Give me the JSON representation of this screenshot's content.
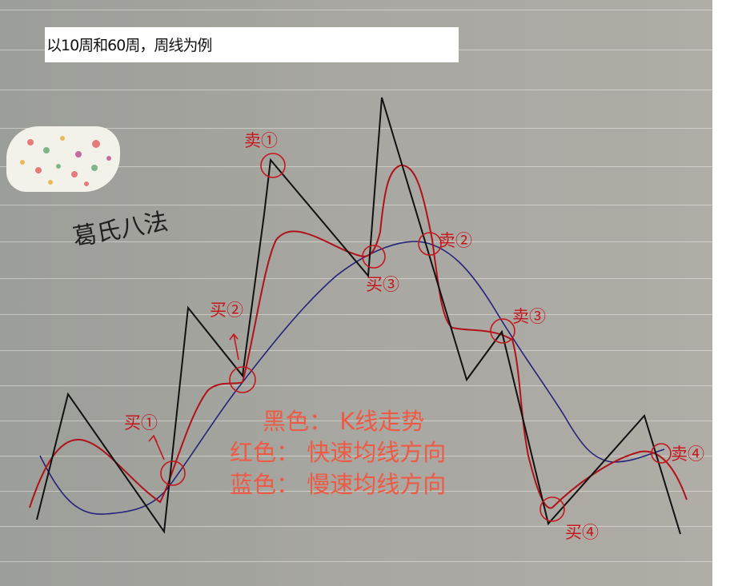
{
  "caption": "以10周和60周，周线为例",
  "heading": "葛氏八法",
  "legend": {
    "black": "黑色：  K线走势",
    "red": "红色：  快速均线方向",
    "blue": "蓝色：  慢速均线方向"
  },
  "signals": {
    "sell1": "卖①",
    "sell2": "卖②",
    "sell3": "卖③",
    "sell4": "卖④",
    "buy1": "买①",
    "buy2": "买②",
    "buy3": "买③",
    "buy4": "买④"
  },
  "colors": {
    "kline": "#111111",
    "fast_ma": "#b0121a",
    "slow_ma": "#25237a",
    "legend_text": "#ee5a44"
  }
}
